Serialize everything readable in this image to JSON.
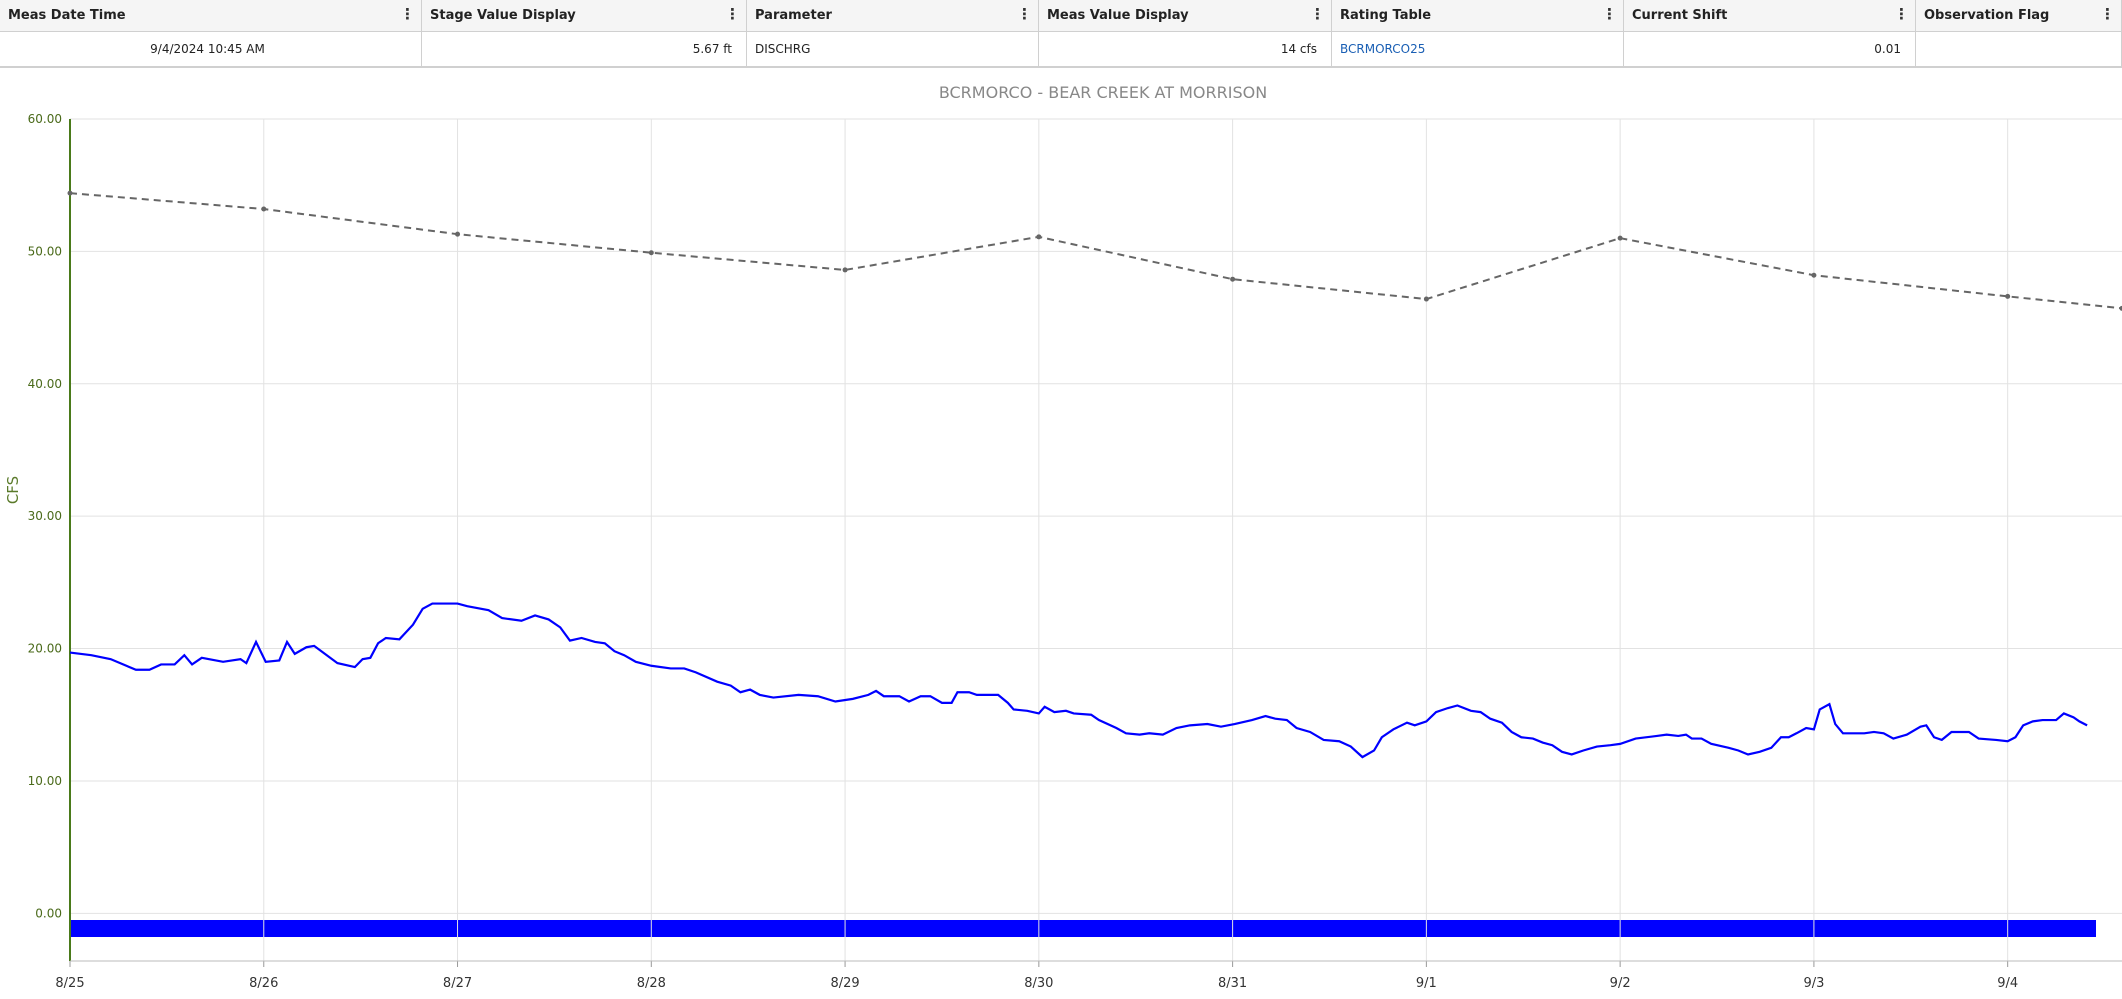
{
  "table": {
    "columns": [
      "Meas Date Time",
      "Stage Value Display",
      "Parameter",
      "Meas Value Display",
      "Rating Table",
      "Current Shift",
      "Observation Flag"
    ],
    "rows": [
      [
        "9/4/2024 10:45 AM",
        "5.67 ft",
        "DISCHRG",
        "14 cfs",
        "BCRMORCO25",
        "0.01"
      ]
    ]
  },
  "chart_data": {
    "type": "line",
    "title": "BCRMORCO - BEAR CREEK AT MORRISON",
    "y_label": "CFS",
    "xlim": [
      0,
      10.59
    ],
    "xticks": [
      {
        "value": 0,
        "label": "8/25"
      },
      {
        "value": 1,
        "label": "8/26"
      },
      {
        "value": 2,
        "label": "8/27"
      },
      {
        "value": 3,
        "label": "8/28"
      },
      {
        "value": 4,
        "label": "8/29"
      },
      {
        "value": 5,
        "label": "8/30"
      },
      {
        "value": 6,
        "label": "8/31"
      },
      {
        "value": 7,
        "label": "9/1"
      },
      {
        "value": 8,
        "label": "9/2"
      },
      {
        "value": 9,
        "label": "9/3"
      },
      {
        "value": 10,
        "label": "9/4"
      }
    ],
    "ylim": [
      -3.6,
      60
    ],
    "yticks": [
      {
        "value": 0,
        "label": "0.00"
      },
      {
        "value": 10,
        "label": "10.00"
      },
      {
        "value": 20,
        "label": "20.00"
      },
      {
        "value": 30,
        "label": "30.00"
      },
      {
        "value": 40,
        "label": "40.00"
      },
      {
        "value": 50,
        "label": "50.00"
      },
      {
        "value": 60,
        "label": "60.00"
      }
    ],
    "grid": true,
    "series": [
      {
        "color": "#666666",
        "dashed": true,
        "x": [
          0,
          1,
          2,
          3,
          4,
          5,
          6,
          7,
          8,
          9,
          10,
          10.59
        ],
        "values": [
          54.4,
          53.2,
          51.3,
          49.9,
          48.6,
          51.1,
          47.9,
          46.4,
          51.0,
          48.2,
          46.6,
          45.7
        ]
      },
      {
        "color": "#0000ff",
        "x": [
          0,
          0.11,
          0.21,
          0.34,
          0.41,
          0.47,
          0.54,
          0.59,
          0.63,
          0.68,
          0.79,
          0.88,
          0.91,
          0.96,
          1.01,
          1.08,
          1.12,
          1.16,
          1.22,
          1.26,
          1.38,
          1.47,
          1.51,
          1.55,
          1.59,
          1.63,
          1.7,
          1.77,
          1.82,
          1.87,
          2.0,
          2.05,
          2.16,
          2.23,
          2.33,
          2.4,
          2.47,
          2.53,
          2.58,
          2.64,
          2.71,
          2.76,
          2.81,
          2.86,
          2.92,
          3.0,
          3.1,
          3.17,
          3.23,
          3.34,
          3.41,
          3.46,
          3.51,
          3.56,
          3.63,
          3.76,
          3.86,
          3.95,
          4.04,
          4.12,
          4.16,
          4.2,
          4.28,
          4.33,
          4.39,
          4.44,
          4.5,
          4.55,
          4.58,
          4.64,
          4.68,
          4.79,
          4.84,
          4.87,
          4.94,
          5.0,
          5.03,
          5.08,
          5.14,
          5.18,
          5.27,
          5.31,
          5.4,
          5.45,
          5.52,
          5.57,
          5.64,
          5.71,
          5.78,
          5.87,
          5.94,
          6.01,
          6.1,
          6.17,
          6.22,
          6.28,
          6.33,
          6.4,
          6.47,
          6.55,
          6.61,
          6.67,
          6.73,
          6.77,
          6.83,
          6.9,
          6.94,
          7.0,
          7.05,
          7.11,
          7.16,
          7.23,
          7.28,
          7.33,
          7.39,
          7.44,
          7.49,
          7.55,
          7.6,
          7.65,
          7.7,
          7.75,
          7.81,
          7.88,
          7.95,
          8.0,
          8.08,
          8.19,
          8.24,
          8.3,
          8.34,
          8.37,
          8.42,
          8.47,
          8.56,
          8.61,
          8.66,
          8.72,
          8.78,
          8.83,
          8.87,
          8.91,
          8.96,
          9.0,
          9.03,
          9.08,
          9.11,
          9.15,
          9.26,
          9.31,
          9.36,
          9.41,
          9.48,
          9.55,
          9.58,
          9.62,
          9.66,
          9.71,
          9.8,
          9.85,
          9.94,
          10.0,
          10.04,
          10.08,
          10.13,
          10.18,
          10.25,
          10.29,
          10.34,
          10.37,
          10.41
        ],
        "values": [
          19.7,
          19.5,
          19.2,
          18.4,
          18.4,
          18.8,
          18.8,
          19.5,
          18.8,
          19.3,
          19.0,
          19.2,
          18.9,
          20.5,
          19.0,
          19.1,
          20.5,
          19.6,
          20.1,
          20.2,
          18.9,
          18.6,
          19.2,
          19.3,
          20.4,
          20.8,
          20.7,
          21.8,
          23.0,
          23.4,
          23.4,
          23.2,
          22.9,
          22.3,
          22.1,
          22.5,
          22.2,
          21.6,
          20.6,
          20.8,
          20.5,
          20.4,
          19.8,
          19.5,
          19.0,
          18.7,
          18.5,
          18.5,
          18.2,
          17.5,
          17.2,
          16.7,
          16.9,
          16.5,
          16.3,
          16.5,
          16.4,
          16.0,
          16.2,
          16.5,
          16.8,
          16.4,
          16.4,
          16.0,
          16.4,
          16.4,
          15.9,
          15.9,
          16.7,
          16.7,
          16.5,
          16.5,
          15.9,
          15.4,
          15.3,
          15.1,
          15.6,
          15.2,
          15.3,
          15.1,
          15.0,
          14.6,
          14.0,
          13.6,
          13.5,
          13.6,
          13.5,
          14.0,
          14.2,
          14.3,
          14.1,
          14.3,
          14.6,
          14.9,
          14.7,
          14.6,
          14.0,
          13.7,
          13.1,
          13.0,
          12.6,
          11.8,
          12.3,
          13.3,
          13.9,
          14.4,
          14.2,
          14.5,
          15.2,
          15.5,
          15.7,
          15.3,
          15.2,
          14.7,
          14.4,
          13.7,
          13.3,
          13.2,
          12.9,
          12.7,
          12.2,
          12.0,
          12.3,
          12.6,
          12.7,
          12.8,
          13.2,
          13.4,
          13.5,
          13.4,
          13.5,
          13.2,
          13.2,
          12.8,
          12.5,
          12.3,
          12.0,
          12.2,
          12.5,
          13.3,
          13.3,
          13.6,
          14.0,
          13.9,
          15.4,
          15.8,
          14.3,
          13.6,
          13.6,
          13.7,
          13.6,
          13.2,
          13.5,
          14.1,
          14.2,
          13.3,
          13.1,
          13.7,
          13.7,
          13.2,
          13.1,
          13.0,
          13.3,
          14.2,
          14.5,
          14.6,
          14.6,
          15.1,
          14.8,
          14.5,
          14.2
        ]
      }
    ]
  }
}
